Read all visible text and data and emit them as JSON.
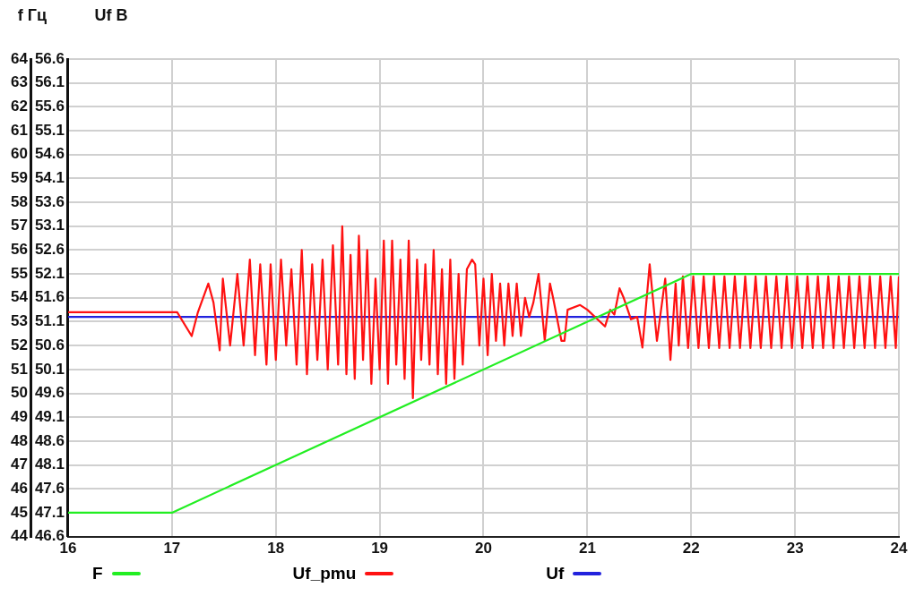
{
  "chart_data": {
    "type": "line",
    "ylabel": "f Гц",
    "y2label": "Uf В",
    "xlim": [
      16,
      24
    ],
    "xticks": [
      16,
      17,
      18,
      19,
      20,
      21,
      22,
      23,
      24
    ],
    "ylim": [
      44,
      64
    ],
    "yticks": [
      44,
      45,
      46,
      47,
      48,
      49,
      50,
      51,
      52,
      53,
      54,
      55,
      56,
      57,
      58,
      59,
      60,
      61,
      62,
      63,
      64
    ],
    "y2lim": [
      46.6,
      56.6
    ],
    "y2ticks": [
      46.6,
      47.1,
      47.6,
      48.1,
      48.6,
      49.1,
      49.6,
      50.1,
      50.6,
      51.1,
      51.6,
      52.1,
      52.6,
      53.1,
      53.6,
      54.1,
      54.6,
      55.1,
      55.6,
      56.1,
      56.6
    ],
    "grid": true,
    "legend": "bottom",
    "marker": "none",
    "line_style": "solid",
    "series": [
      {
        "name": "F",
        "color": "#22ee22",
        "x": [
          16,
          17,
          22,
          24
        ],
        "values": [
          45,
          45,
          55,
          55
        ]
      },
      {
        "name": "Uf_pmu",
        "color": "#ff1111",
        "axis": "y2",
        "x": [
          16,
          17,
          17.05,
          17.19,
          17.25,
          17.35,
          17.4,
          17.46,
          17.49,
          17.56,
          17.63,
          17.69,
          17.75,
          17.8,
          17.85,
          17.91,
          17.95,
          18.0,
          18.05,
          18.1,
          18.15,
          18.2,
          18.25,
          18.3,
          18.35,
          18.4,
          18.45,
          18.5,
          18.55,
          18.6,
          18.64,
          18.68,
          18.72,
          18.76,
          18.8,
          18.84,
          18.88,
          18.92,
          18.96,
          19.0,
          19.04,
          19.08,
          19.12,
          19.16,
          19.2,
          19.24,
          19.28,
          19.32,
          19.36,
          19.4,
          19.44,
          19.48,
          19.52,
          19.56,
          19.6,
          19.64,
          19.68,
          19.72,
          19.76,
          19.8,
          19.84,
          19.89,
          19.92,
          19.96,
          20.0,
          20.04,
          20.08,
          20.12,
          20.16,
          20.2,
          20.24,
          20.28,
          20.32,
          20.36,
          20.4,
          20.44,
          20.48,
          20.53,
          20.59,
          20.64,
          20.67,
          20.75,
          20.78,
          20.81,
          20.93,
          21.0,
          21.17,
          21.22,
          21.26,
          21.31,
          21.35,
          21.42,
          21.48,
          21.53,
          21.6,
          21.67,
          21.75,
          21.8,
          21.85,
          21.88,
          21.92,
          21.97,
          22.02,
          22.07,
          22.12,
          22.17,
          22.22,
          22.27,
          22.32,
          22.37,
          22.42,
          22.47,
          22.52,
          22.57,
          22.62,
          22.67,
          22.72,
          22.77,
          22.82,
          22.87,
          22.92,
          22.97,
          23.02,
          23.07,
          23.12,
          23.17,
          23.22,
          23.27,
          23.32,
          23.37,
          23.42,
          23.47,
          23.52,
          23.57,
          23.62,
          23.67,
          23.72,
          23.77,
          23.82,
          23.87,
          23.92,
          23.97,
          24
        ],
        "values": [
          51.3,
          51.3,
          51.3,
          50.8,
          51.3,
          51.9,
          51.5,
          50.5,
          52.0,
          50.6,
          52.1,
          50.6,
          52.4,
          50.4,
          52.3,
          50.2,
          52.3,
          50.3,
          52.4,
          50.6,
          52.2,
          50.2,
          52.6,
          50.0,
          52.3,
          50.3,
          52.4,
          50.1,
          52.7,
          50.2,
          53.1,
          50.0,
          52.5,
          49.9,
          52.9,
          50.3,
          52.6,
          49.8,
          52.0,
          50.1,
          52.8,
          49.8,
          52.8,
          50.2,
          52.4,
          49.9,
          52.8,
          49.5,
          52.4,
          50.3,
          52.3,
          50.2,
          52.6,
          50.0,
          52.2,
          49.8,
          52.4,
          49.9,
          52.1,
          50.2,
          52.2,
          52.4,
          52.3,
          50.6,
          52.0,
          50.4,
          52.1,
          50.7,
          51.9,
          50.6,
          51.9,
          50.8,
          51.9,
          50.8,
          51.6,
          51.2,
          51.5,
          52.1,
          50.7,
          51.9,
          51.6,
          50.7,
          50.7,
          51.35,
          51.45,
          51.35,
          51.0,
          51.35,
          51.25,
          51.8,
          51.6,
          51.15,
          51.2,
          50.56,
          52.3,
          50.7,
          52.0,
          50.3,
          51.9,
          50.6,
          52.05,
          50.55,
          52.05,
          50.55,
          52.05,
          50.55,
          52.05,
          50.55,
          52.05,
          50.55,
          52.05,
          50.55,
          52.05,
          50.55,
          52.05,
          50.55,
          52.05,
          50.55,
          52.05,
          50.55,
          52.05,
          50.55,
          52.05,
          50.55,
          52.05,
          50.55,
          52.05,
          50.55,
          52.05,
          50.55,
          52.05,
          50.55,
          52.05,
          50.55,
          52.05,
          50.55,
          52.05,
          50.55,
          52.05,
          50.55,
          52.05,
          50.55,
          52.05
        ]
      },
      {
        "name": "Uf",
        "color": "#2222dd",
        "axis": "y2",
        "x": [
          16,
          24
        ],
        "values": [
          51.2,
          51.2
        ]
      }
    ]
  }
}
